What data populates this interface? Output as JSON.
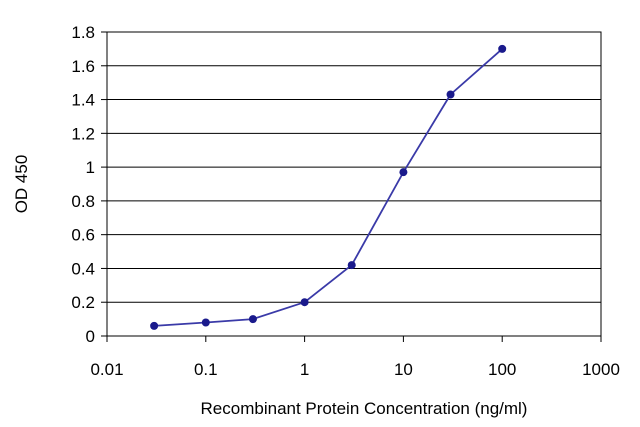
{
  "chart_data": {
    "type": "line",
    "x_scale": "log",
    "xlabel": "Recombinant Protein Concentration (ng/ml)",
    "ylabel": "OD 450",
    "xlim": [
      0.01,
      1000
    ],
    "ylim": [
      0,
      1.8
    ],
    "x_ticks": [
      0.01,
      0.1,
      1,
      10,
      100,
      1000
    ],
    "x_tick_labels": [
      "0.01",
      "0.1",
      "1",
      "10",
      "100",
      "1000"
    ],
    "y_ticks": [
      0,
      0.2,
      0.4,
      0.6,
      0.8,
      1,
      1.2,
      1.4,
      1.6,
      1.8
    ],
    "y_tick_labels": [
      "0",
      "0.2",
      "0.4",
      "0.6",
      "0.8",
      "1",
      "1.2",
      "1.4",
      "1.6",
      "1.8"
    ],
    "grid": "horizontal",
    "series": [
      {
        "color": "#3a3aa8",
        "marker_color": "#1a1a8c",
        "x": [
          0.03,
          0.1,
          0.3,
          1,
          3,
          10,
          30,
          100
        ],
        "y": [
          0.06,
          0.08,
          0.1,
          0.2,
          0.42,
          0.97,
          1.43,
          1.7
        ]
      }
    ]
  }
}
